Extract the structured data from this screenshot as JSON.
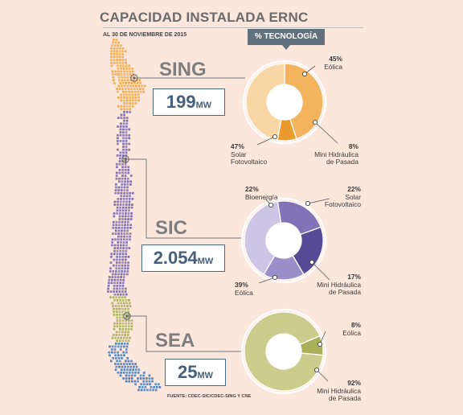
{
  "header": {
    "title": "CAPACIDAD INSTALADA ERNC",
    "date": "AL 30 DE NOVIEMBRE DE 2015",
    "badge": "% TECNOLOGÍA"
  },
  "source": "FUENTE: CDEC-SIC/CDEC-SING Y CNE",
  "colors": {
    "background": "#fce7dc",
    "sing": "#f4a844",
    "sic": "#7b6bb2",
    "sea": "#a8b05a",
    "sea_south": "#4a7fc0",
    "box_border": "#4b6b7e",
    "badge": "#60707d"
  },
  "systems": [
    {
      "name": "SING",
      "capacity": "199",
      "unit": "MW",
      "labels": [
        {
          "pct": "45%",
          "lines": [
            "Eólica"
          ]
        },
        {
          "pct": "47%",
          "lines": [
            "Solar",
            "Fotovoltaico"
          ]
        },
        {
          "pct": "8%",
          "lines": [
            "Mini Hidráulica",
            "de Pasada"
          ]
        }
      ]
    },
    {
      "name": "SIC",
      "capacity": "2.054",
      "unit": "MW",
      "labels": [
        {
          "pct": "22%",
          "lines": [
            "Bioenergía"
          ]
        },
        {
          "pct": "22%",
          "lines": [
            "Solar",
            "Fotovoltaico"
          ]
        },
        {
          "pct": "17%",
          "lines": [
            "Mini Hidráulica",
            "de Pasada"
          ]
        },
        {
          "pct": "39%",
          "lines": [
            "Eólica"
          ]
        }
      ]
    },
    {
      "name": "SEA",
      "capacity": "25",
      "unit": "MW",
      "labels": [
        {
          "pct": "8%",
          "lines": [
            "Eólica"
          ]
        },
        {
          "pct": "92%",
          "lines": [
            "Mini Hidráulica",
            "de Pasada"
          ]
        }
      ]
    }
  ],
  "chart_data": [
    {
      "type": "pie",
      "system": "SING",
      "categories": [
        "Eólica",
        "Mini Hidráulica de Pasada",
        "Solar Fotovoltaico"
      ],
      "values": [
        45,
        8,
        47
      ],
      "colors": [
        "#f4b45e",
        "#eb9a2e",
        "#f9d7a4"
      ]
    },
    {
      "type": "pie",
      "system": "SIC",
      "categories": [
        "Bioenergía",
        "Solar Fotovoltaico",
        "Mini Hidráulica de Pasada",
        "Eólica"
      ],
      "values": [
        22,
        22,
        17,
        39
      ],
      "colors": [
        "#8273b8",
        "#574a94",
        "#9b8fca",
        "#cdc5e6"
      ]
    },
    {
      "type": "pie",
      "system": "SEA",
      "categories": [
        "Eólica",
        "Mini Hidráulica de Pasada"
      ],
      "values": [
        8,
        92
      ],
      "colors": [
        "#a8b05a",
        "#cbcd8d"
      ]
    }
  ]
}
